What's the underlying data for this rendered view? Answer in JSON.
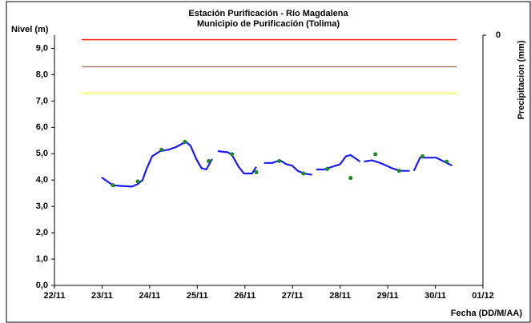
{
  "chart_data": {
    "type": "line",
    "title": "Estación Purificación - Río Magdalena",
    "subtitle": "Municipio de Purificación (Tolima)",
    "y_label": "Nivel (m)",
    "y2_label": "Precipitacion (mm)",
    "x_label": "Fecha (DD/M/AA)",
    "xlim": [
      0,
      9
    ],
    "xticks": [
      {
        "value": 0,
        "label": "22/11"
      },
      {
        "value": 1,
        "label": "23/11"
      },
      {
        "value": 2,
        "label": "24/11"
      },
      {
        "value": 3,
        "label": "25/11"
      },
      {
        "value": 4,
        "label": "26/11"
      },
      {
        "value": 5,
        "label": "27/11"
      },
      {
        "value": 6,
        "label": "28/11"
      },
      {
        "value": 7,
        "label": "29/11"
      },
      {
        "value": 8,
        "label": "30/11"
      },
      {
        "value": 9,
        "label": "01/12"
      }
    ],
    "ylim": [
      0,
      9.5
    ],
    "yticks": [
      {
        "value": 0,
        "label": "0,0"
      },
      {
        "value": 1,
        "label": "1,0"
      },
      {
        "value": 2,
        "label": "2,0"
      },
      {
        "value": 3,
        "label": "3,0"
      },
      {
        "value": 4,
        "label": "4,0"
      },
      {
        "value": 5,
        "label": "5,0"
      },
      {
        "value": 6,
        "label": "6,0"
      },
      {
        "value": 7,
        "label": "7,0"
      },
      {
        "value": 8,
        "label": "8,0"
      },
      {
        "value": 9,
        "label": "9,0"
      }
    ],
    "y2lim": [
      100,
      0
    ],
    "y2ticks": [
      0
    ],
    "reference_lines": [
      {
        "color": "#ff2020",
        "value": 9.33,
        "x": [
          0.57,
          8.45
        ]
      },
      {
        "color": "#a08060",
        "value": 8.3,
        "x": [
          0.57,
          8.45
        ]
      },
      {
        "color": "#ffff40",
        "value": 7.3,
        "x": [
          0.57,
          8.45
        ]
      }
    ],
    "series": [
      {
        "color": "#1a1aff",
        "x": [
          0.99,
          1.23,
          1.38,
          1.63,
          1.75,
          1.85,
          1.93,
          2.05,
          2.22,
          2.39,
          2.55,
          2.76,
          2.86,
          2.98,
          3.09,
          3.19,
          3.31,
          3.37,
          3.43,
          3.65,
          3.73,
          3.87,
          3.98,
          4.15,
          4.24,
          4.32,
          4.4,
          4.57,
          4.74,
          4.87,
          4.99,
          5.11,
          5.24,
          5.41,
          5.45,
          5.5,
          5.66,
          5.83,
          6.0,
          6.12,
          6.22,
          6.34,
          6.42,
          6.46,
          6.5,
          6.67,
          6.84,
          7.09,
          7.26,
          7.46,
          7.5,
          7.55,
          7.68,
          7.85,
          8.02,
          8.18,
          8.35
        ],
        "values": [
          4.1,
          3.8,
          3.78,
          3.75,
          3.85,
          4.0,
          4.4,
          4.9,
          5.1,
          5.15,
          5.25,
          5.45,
          5.3,
          4.8,
          4.45,
          4.4,
          4.8,
          null,
          5.1,
          5.05,
          4.95,
          4.5,
          4.25,
          4.25,
          4.5,
          null,
          4.65,
          4.65,
          4.75,
          4.6,
          4.55,
          4.35,
          4.25,
          4.2,
          null,
          4.4,
          4.4,
          4.5,
          4.6,
          4.9,
          4.95,
          4.8,
          4.7,
          null,
          4.7,
          4.75,
          4.65,
          4.45,
          4.35,
          4.35,
          null,
          4.35,
          4.85,
          4.85,
          4.85,
          4.7,
          4.55
        ]
      },
      {
        "color": "#1a8a1a",
        "style": "points",
        "x": [
          1.23,
          1.75,
          2.25,
          2.74,
          3.24,
          3.73,
          4.24,
          4.72,
          5.23,
          5.73,
          6.22,
          6.74,
          7.24,
          7.73,
          8.24
        ],
        "values": [
          3.8,
          3.95,
          5.15,
          5.45,
          4.72,
          4.98,
          4.3,
          4.72,
          4.25,
          4.42,
          4.08,
          4.98,
          4.35,
          4.9,
          4.7
        ]
      }
    ]
  }
}
